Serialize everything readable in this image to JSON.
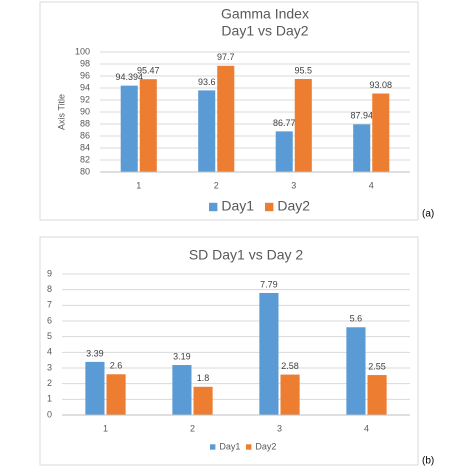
{
  "chart_data": [
    {
      "type": "bar",
      "title": "Gamma Index",
      "subtitle": "Day1 vs Day2",
      "y_label": "Axis Title",
      "panel_label": "(a)",
      "categories": [
        "1",
        "2",
        "3",
        "4"
      ],
      "series": [
        {
          "name": "Day1",
          "color": "#5b9bd5",
          "values": [
            94.394,
            93.6,
            86.77,
            87.94
          ]
        },
        {
          "name": "Day2",
          "color": "#ed7d31",
          "values": [
            95.47,
            97.7,
            95.5,
            93.08
          ]
        }
      ],
      "ylim": [
        80,
        100
      ],
      "yticks": [
        80,
        82,
        84,
        86,
        88,
        90,
        92,
        94,
        96,
        98,
        100
      ],
      "grid": true,
      "data_labels": true,
      "legend": "bottom"
    },
    {
      "type": "bar",
      "title": "SD Day1 vs Day 2",
      "panel_label": "(b)",
      "categories": [
        "1",
        "2",
        "3",
        "4"
      ],
      "series": [
        {
          "name": "Day1",
          "color": "#5b9bd5",
          "values": [
            3.39,
            3.19,
            7.79,
            5.6
          ]
        },
        {
          "name": "Day2",
          "color": "#ed7d31",
          "values": [
            2.6,
            1.8,
            2.58,
            2.55
          ]
        }
      ],
      "ylim": [
        0,
        9
      ],
      "yticks": [
        0,
        1,
        2,
        3,
        4,
        5,
        6,
        7,
        8,
        9
      ],
      "grid": true,
      "data_labels": true,
      "legend": "bottom"
    }
  ]
}
